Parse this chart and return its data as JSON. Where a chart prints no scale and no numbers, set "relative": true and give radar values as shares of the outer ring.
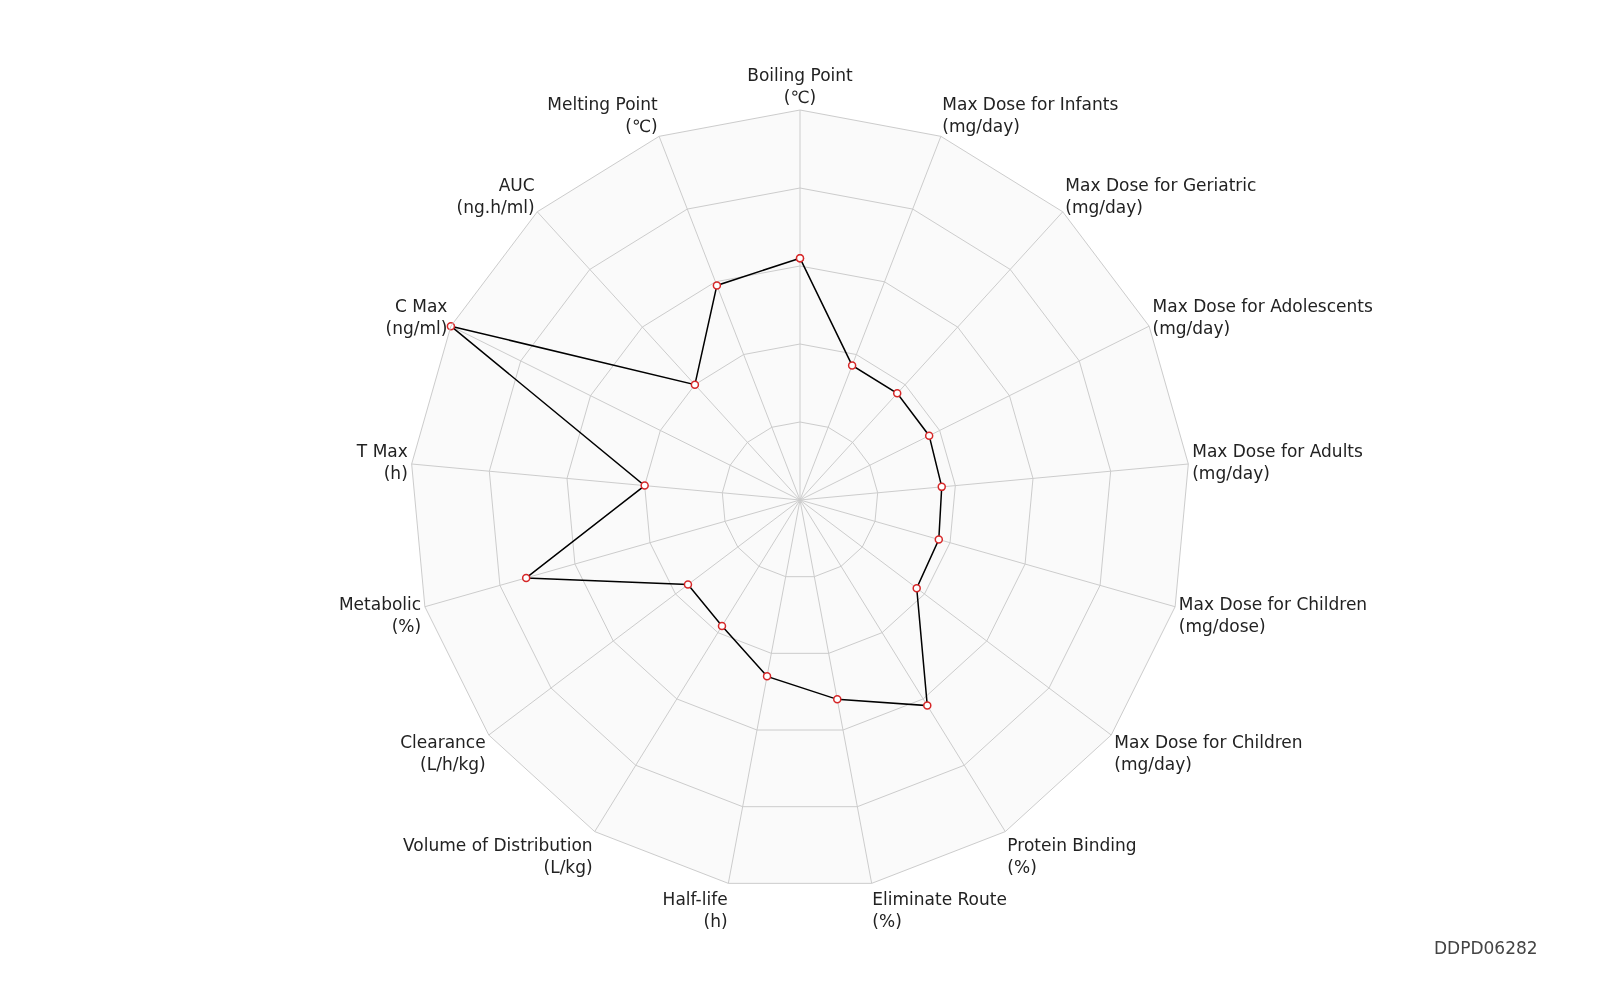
{
  "chart_data": {
    "type": "radar",
    "relative": true,
    "categories": [
      "Boiling Point\n(℃)",
      "Max Dose for Infants\n(mg/day)",
      "Max Dose for Geriatric\n(mg/day)",
      "Max Dose for Adolescents\n(mg/day)",
      "Max Dose for Adults\n(mg/day)",
      "Max Dose for Children\n(mg/dose)",
      "Max Dose for Children\n(mg/day)",
      "Protein Binding\n(%)",
      "Eliminate Route\n(%)",
      "Half-life\n(h)",
      "Volume of Distribution\n(L/kg)",
      "Clearance\n(L/h/kg)",
      "Metabolic\n(%)",
      "T Max\n(h)",
      "C Max\n(ng/ml)",
      "AUC\n(ng.h/ml)",
      "Melting Point\n(℃)"
    ],
    "series": [
      {
        "color": "#000000",
        "values": [
          0.62,
          0.37,
          0.37,
          0.37,
          0.365,
          0.37,
          0.375,
          0.62,
          0.52,
          0.46,
          0.38,
          0.36,
          0.73,
          0.4,
          1.0,
          0.4,
          0.59
        ]
      }
    ],
    "marker": "circle",
    "line_style": "solid",
    "annotations": [
      "DDPD06282"
    ]
  }
}
